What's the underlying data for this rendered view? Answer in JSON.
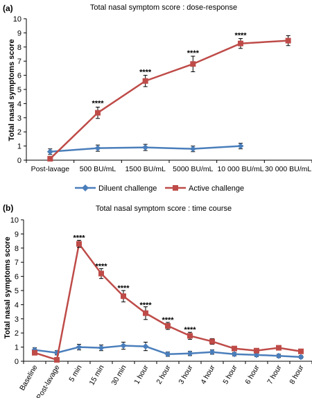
{
  "colors": {
    "diluent": "#4a7ebb",
    "active": "#be4b48",
    "axis": "#000000",
    "stars": "#000000"
  },
  "legend": {
    "diluent_label": "Diluent challenge",
    "active_label": "Active challenge",
    "diluent_icon": "diamond-marker-icon",
    "active_icon": "square-marker-icon",
    "placement": "below-chart-a"
  },
  "chart_data": [
    {
      "type": "line",
      "panel_label": "(a)",
      "title": "Total nasal symptom score : dose-response",
      "ylabel": "Total nasal symptoms score",
      "xlabel": "",
      "ylim": [
        0,
        10
      ],
      "yticks": [
        "0",
        "1",
        "2",
        "3",
        "4",
        "5",
        "6",
        "7",
        "8",
        "9",
        "10"
      ],
      "grid": false,
      "categories": [
        "Post-lavage",
        "500 BU/mL",
        "1500 BU/mL",
        "5000 BU/mL",
        "10 000 BU/mL",
        "30 000 BU/mL"
      ],
      "series": [
        {
          "name": "Diluent challenge",
          "marker": "diamond",
          "values": [
            0.6,
            0.85,
            0.9,
            0.8,
            1.0,
            null
          ],
          "errors": [
            0.2,
            0.22,
            0.22,
            0.2,
            0.2,
            null
          ]
        },
        {
          "name": "Active challenge",
          "marker": "square",
          "values": [
            0.1,
            3.35,
            5.6,
            6.8,
            8.25,
            8.45
          ],
          "errors": [
            0.15,
            0.4,
            0.4,
            0.55,
            0.35,
            0.35
          ]
        }
      ],
      "annotations": [
        {
          "category": "500 BU/mL",
          "text": "****",
          "y": 4.05
        },
        {
          "category": "1500 BU/mL",
          "text": "****",
          "y": 6.25
        },
        {
          "category": "5000 BU/mL",
          "text": "****",
          "y": 7.6
        },
        {
          "category": "10 000 BU/mL",
          "text": "****",
          "y": 8.85
        }
      ]
    },
    {
      "type": "line",
      "panel_label": "(b)",
      "title": "Total nasal symptom score : time course",
      "ylabel": "Total nasal symptoms score",
      "xlabel": "",
      "ylim": [
        0,
        10
      ],
      "yticks": [
        "0",
        "1",
        "2",
        "3",
        "4",
        "5",
        "6",
        "7",
        "8",
        "9",
        "10"
      ],
      "grid": false,
      "categories": [
        "Baseline",
        "Post-lavage",
        "5 min",
        "15 min",
        "30 min",
        "1 hour",
        "2 hour",
        "3 hour",
        "4 hour",
        "5 hour",
        "6 hour",
        "7 hour",
        "8 hour"
      ],
      "series": [
        {
          "name": "Diluent challenge",
          "marker": "diamond",
          "values": [
            0.8,
            0.6,
            1.0,
            0.95,
            1.1,
            1.05,
            0.5,
            0.55,
            0.65,
            0.5,
            0.45,
            0.38,
            0.3
          ],
          "errors": [
            0.15,
            0.15,
            0.2,
            0.2,
            0.25,
            0.3,
            0.15,
            0.15,
            0.15,
            0.12,
            0.12,
            0.12,
            0.1
          ]
        },
        {
          "name": "Active challenge",
          "marker": "square",
          "values": [
            0.6,
            0.1,
            8.3,
            6.2,
            4.6,
            3.4,
            2.5,
            1.8,
            1.4,
            0.9,
            0.75,
            0.95,
            0.7
          ],
          "errors": [
            0.15,
            0.1,
            0.25,
            0.35,
            0.4,
            0.45,
            0.25,
            0.25,
            0.2,
            0.15,
            0.15,
            0.15,
            0.12
          ]
        }
      ],
      "annotations": [
        {
          "category": "5 min",
          "text": "****",
          "y": 8.75
        },
        {
          "category": "15 min",
          "text": "****",
          "y": 6.75
        },
        {
          "category": "30 min",
          "text": "****",
          "y": 5.2
        },
        {
          "category": "1 hour",
          "text": "****",
          "y": 4.0
        },
        {
          "category": "2 hour",
          "text": "****",
          "y": 2.95
        },
        {
          "category": "3 hour",
          "text": "****",
          "y": 2.25
        }
      ]
    }
  ]
}
